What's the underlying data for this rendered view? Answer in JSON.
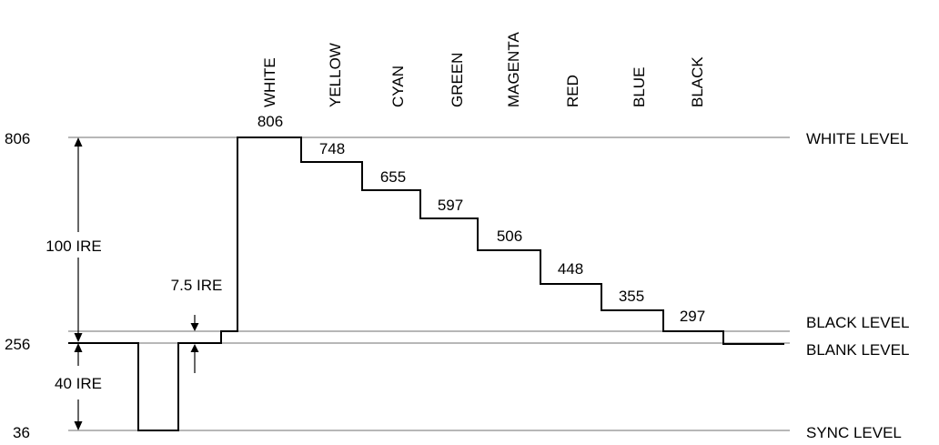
{
  "y_axis": {
    "levels": [
      "806",
      "256",
      "36"
    ]
  },
  "level_labels": {
    "white": "WHITE LEVEL",
    "black": "BLACK LEVEL",
    "blank": "BLANK LEVEL",
    "sync": "SYNC LEVEL"
  },
  "dimensions": {
    "upper": "100 IRE",
    "lower": "40 IRE",
    "setup": "7.5 IRE"
  },
  "colors": [
    "WHITE",
    "YELLOW",
    "CYAN",
    "GREEN",
    "MAGENTA",
    "RED",
    "BLUE",
    "BLACK"
  ],
  "step_values": [
    "806",
    "748",
    "655",
    "597",
    "506",
    "448",
    "355",
    "297"
  ]
}
